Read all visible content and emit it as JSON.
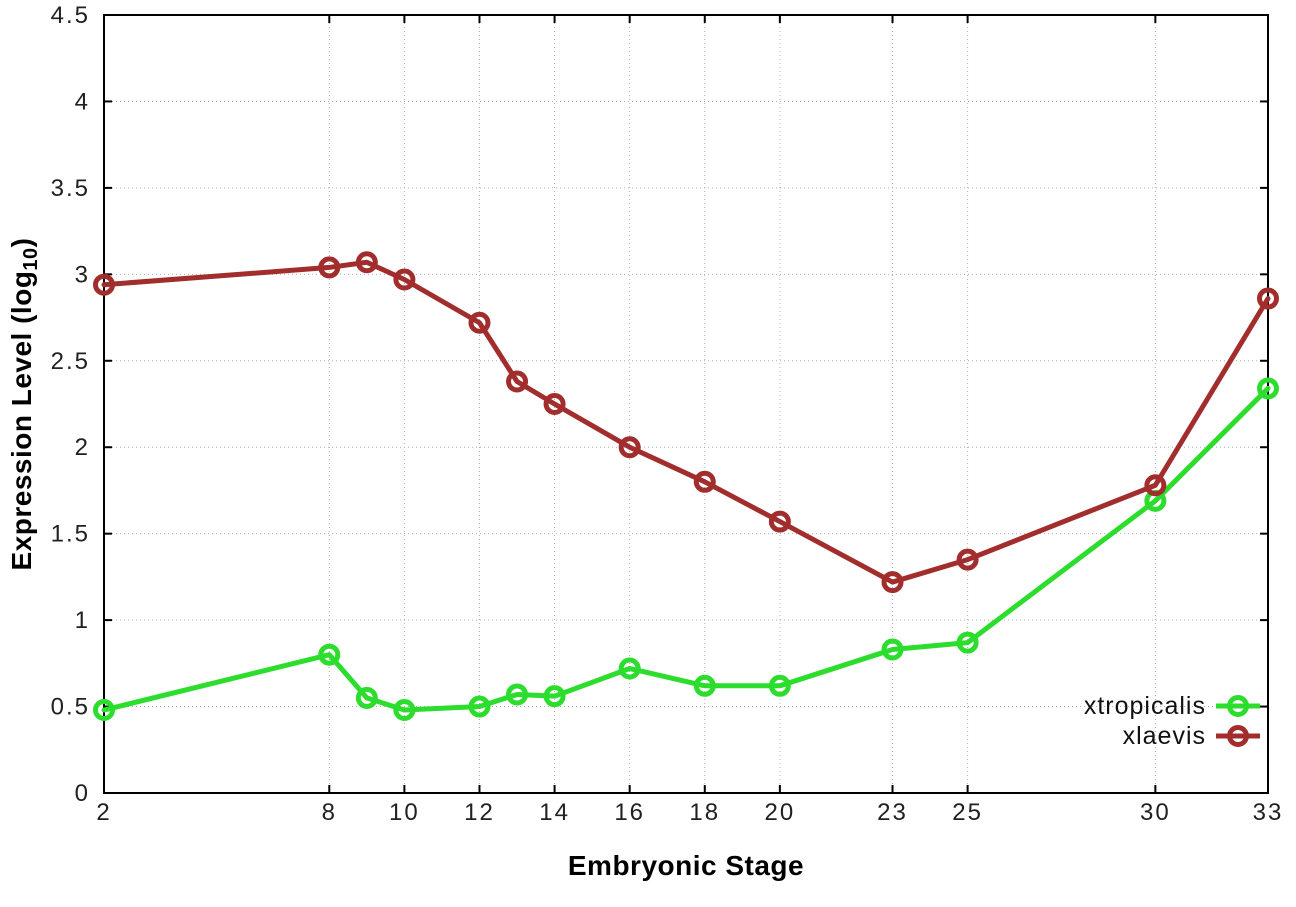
{
  "page": {
    "background": "#ffffff",
    "grid_color": "#b0b0b0",
    "border_color": "#000000",
    "tick_text_color": "#212121"
  },
  "chart_data": {
    "type": "line",
    "title": "",
    "xlabel": "Embryonic Stage",
    "ylabel_prefix": "Expression Level (log",
    "ylabel_sub": "10",
    "ylabel_suffix": ")",
    "xlim": [
      2,
      33
    ],
    "ylim": [
      0,
      4.5
    ],
    "x_ticks": [
      2,
      8,
      10,
      12,
      14,
      16,
      18,
      20,
      23,
      25,
      30,
      33
    ],
    "y_ticks": [
      0,
      0.5,
      1,
      1.5,
      2,
      2.5,
      3,
      3.5,
      4,
      4.5
    ],
    "grid": true,
    "legend_position": "bottom-right",
    "x": [
      2,
      8,
      9,
      10,
      12,
      13,
      14,
      16,
      18,
      20,
      23,
      25,
      30,
      33
    ],
    "series": [
      {
        "name": "xtropicalis",
        "color": "#2ddd2d",
        "values": [
          0.48,
          0.8,
          0.55,
          0.48,
          0.5,
          0.57,
          0.56,
          0.72,
          0.62,
          0.62,
          0.83,
          0.87,
          1.69,
          2.34
        ]
      },
      {
        "name": "xlaevis",
        "color": "#a22d2d",
        "values": [
          2.94,
          3.04,
          3.07,
          2.97,
          2.72,
          2.38,
          2.25,
          2.0,
          1.8,
          1.57,
          1.22,
          1.35,
          1.78,
          2.86
        ]
      }
    ]
  }
}
